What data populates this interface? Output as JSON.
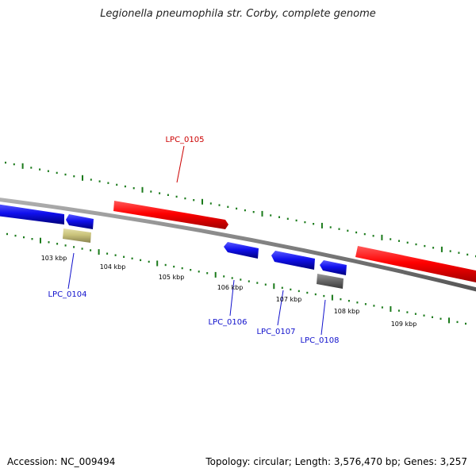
{
  "title": "Legionella pneumophila str. Corby, complete genome",
  "footer": {
    "accession": "Accession: NC_009494",
    "info": "Topology: circular; Length: 3,576,470 bp; Genes: 3,257"
  },
  "colors": {
    "backbone": "#888888",
    "tick": "#1a7a1a",
    "forward_gene": "#ff0000",
    "reverse_gene": "#1010ee",
    "gray_gene": "#6a6a6a",
    "tan_gene": "#c9c27a",
    "forward_label": "#cc0000",
    "reverse_label": "#1010cc"
  },
  "kbp_labels": [
    "103 kbp",
    "104 kbp",
    "105 kbp",
    "106 kbp",
    "107 kbp",
    "108 kbp",
    "109 kbp"
  ],
  "gene_labels": {
    "lpc0104": "LPC_0104",
    "lpc0105": "LPC_0105",
    "lpc0106": "LPC_0106",
    "lpc0107": "LPC_0107",
    "lpc0108": "LPC_0108"
  }
}
